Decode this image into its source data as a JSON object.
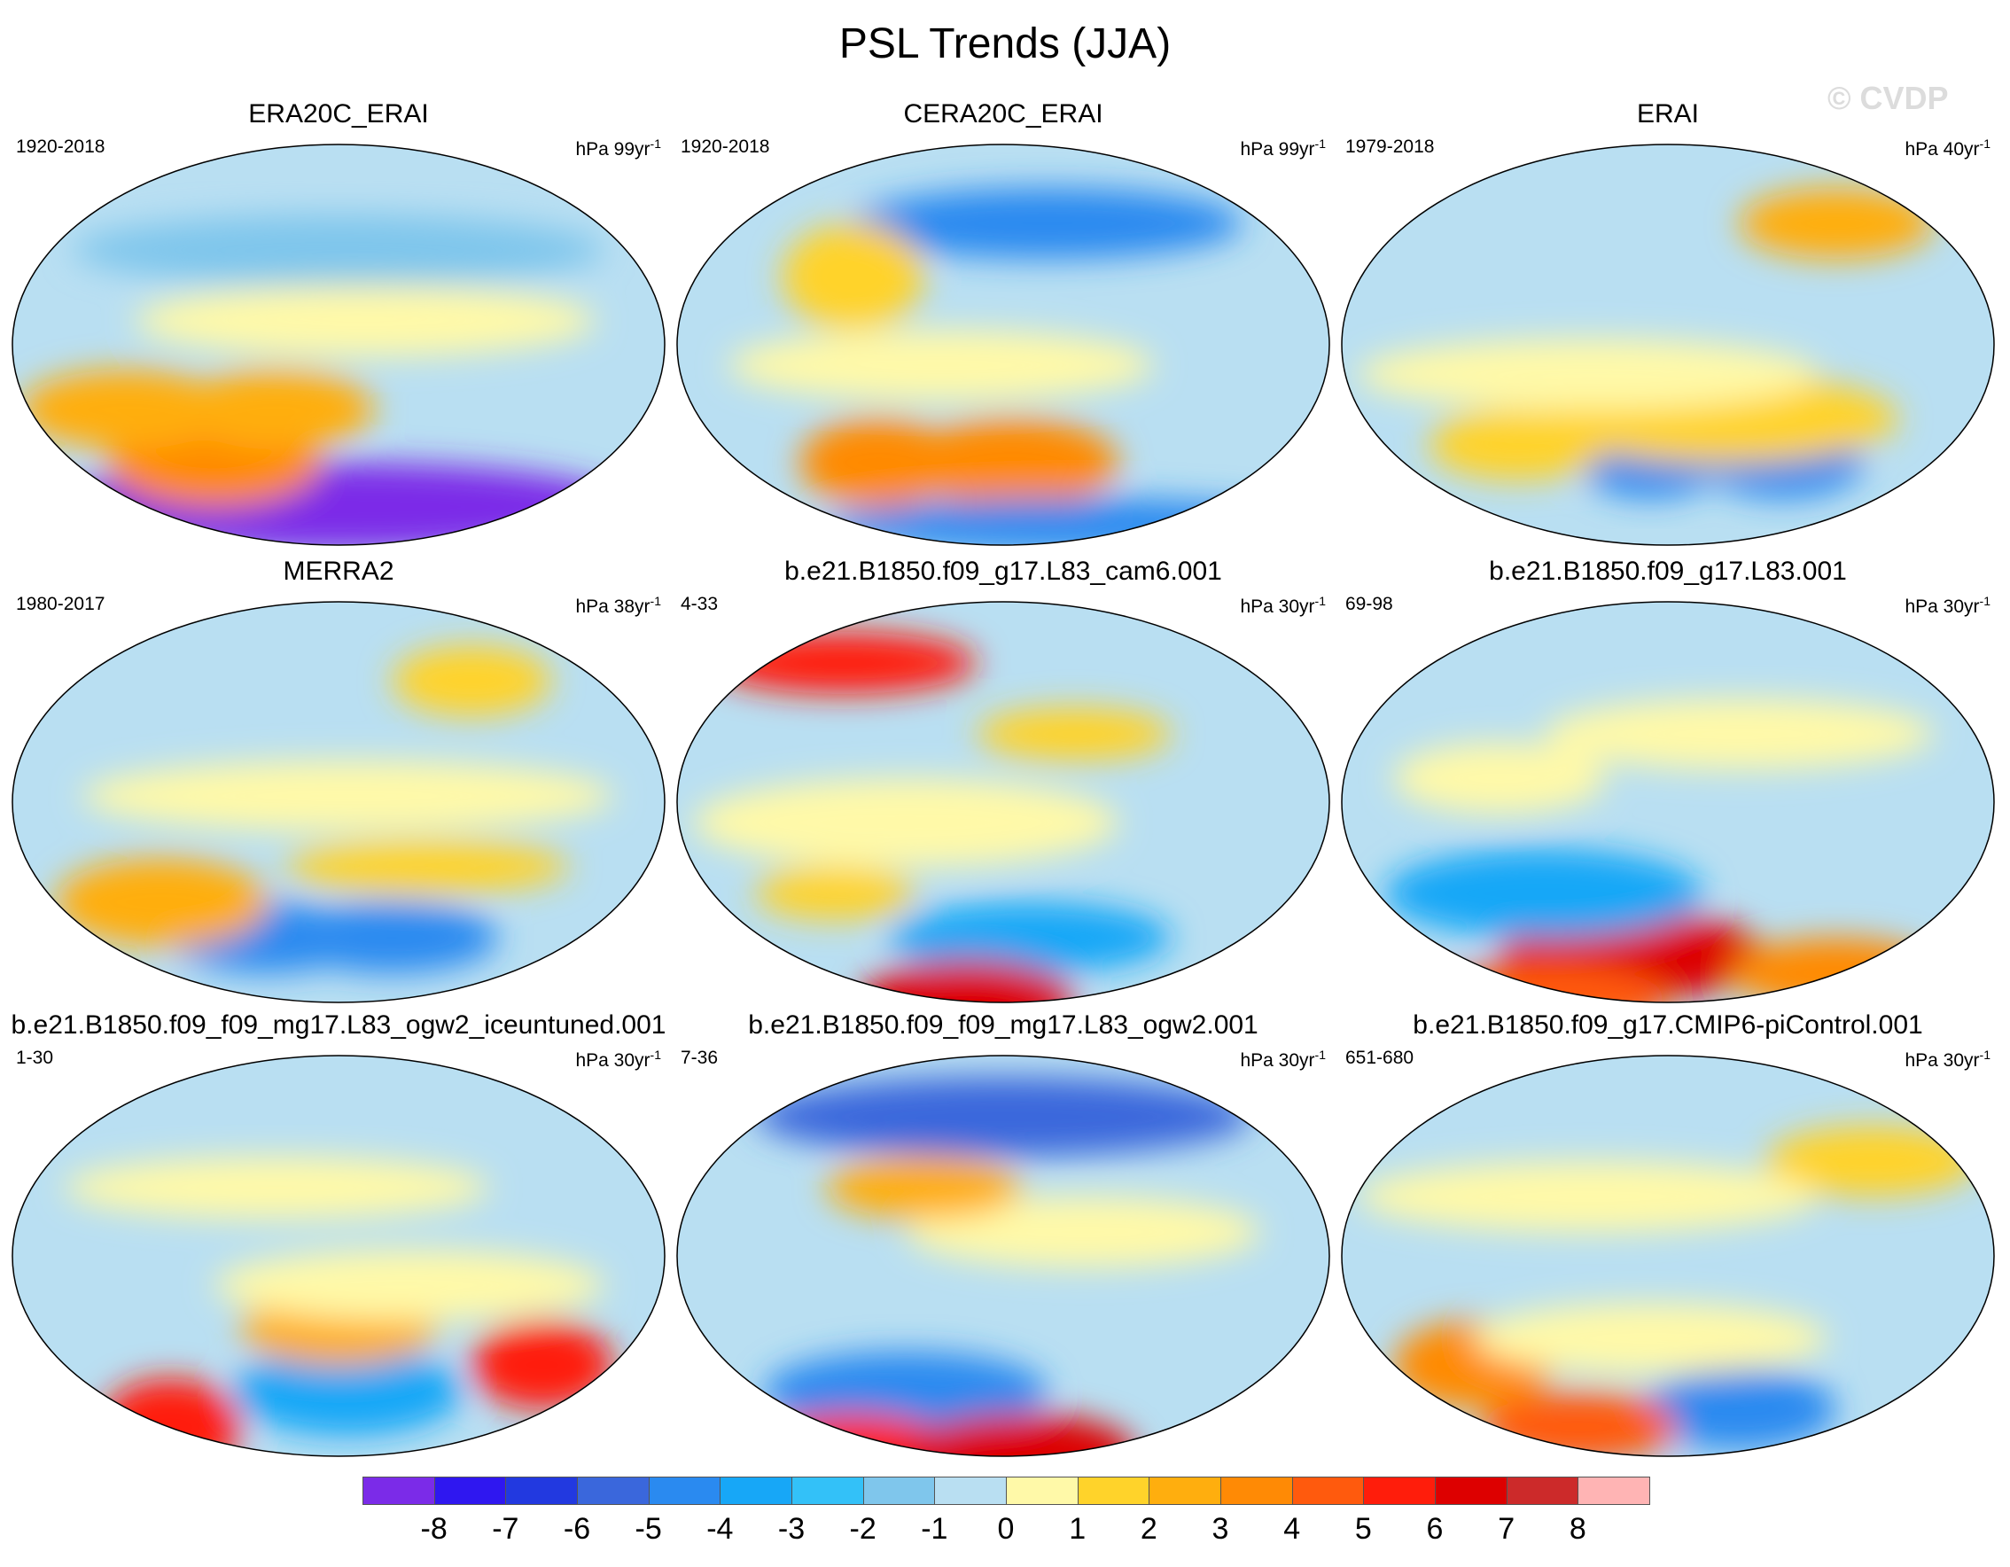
{
  "title": "PSL Trends (JJA)",
  "watermark": "© CVDP",
  "chart_data": {
    "type": "heatmap",
    "title": "PSL Trends (JJA)",
    "projection": "global map",
    "panels": [
      {
        "title": "ERA20C_ERAI",
        "period": "1920-2018",
        "units": "hPa 99yr",
        "units_exp": "-1"
      },
      {
        "title": "CERA20C_ERAI",
        "period": "1920-2018",
        "units": "hPa 99yr",
        "units_exp": "-1"
      },
      {
        "title": "ERAI",
        "period": "1979-2018",
        "units": "hPa 40yr",
        "units_exp": "-1"
      },
      {
        "title": "MERRA2",
        "period": "1980-2017",
        "units": "hPa 38yr",
        "units_exp": "-1"
      },
      {
        "title": "b.e21.B1850.f09_g17.L83_cam6.001",
        "period": "4-33",
        "units": "hPa 30yr",
        "units_exp": "-1"
      },
      {
        "title": "b.e21.B1850.f09_g17.L83.001",
        "period": "69-98",
        "units": "hPa 30yr",
        "units_exp": "-1"
      },
      {
        "title": "b.e21.B1850.f09_f09_mg17.L83_ogw2_iceuntuned.001",
        "period": "1-30",
        "units": "hPa 30yr",
        "units_exp": "-1"
      },
      {
        "title": "b.e21.B1850.f09_f09_mg17.L83_ogw2.001",
        "period": "7-36",
        "units": "hPa 30yr",
        "units_exp": "-1"
      },
      {
        "title": "b.e21.B1850.f09_g17.CMIP6-piControl.001",
        "period": "651-680",
        "units": "hPa 30yr",
        "units_exp": "-1"
      }
    ],
    "colorbar": {
      "labels": [
        "-8",
        "-7",
        "-6",
        "-5",
        "-4",
        "-3",
        "-2",
        "-1",
        "0",
        "1",
        "2",
        "3",
        "4",
        "5",
        "6",
        "7",
        "8"
      ],
      "colors": [
        "#7b2be8",
        "#2f17f0",
        "#2239e0",
        "#3a67dc",
        "#2a8af0",
        "#17a7f7",
        "#33c1f8",
        "#7fc6ec",
        "#b9dff2",
        "#fff9a8",
        "#ffd32a",
        "#ffae0e",
        "#ff8a05",
        "#ff5a0d",
        "#ff1d0b",
        "#dd0000",
        "#cc2a2a",
        "#ffb4b4"
      ]
    }
  }
}
